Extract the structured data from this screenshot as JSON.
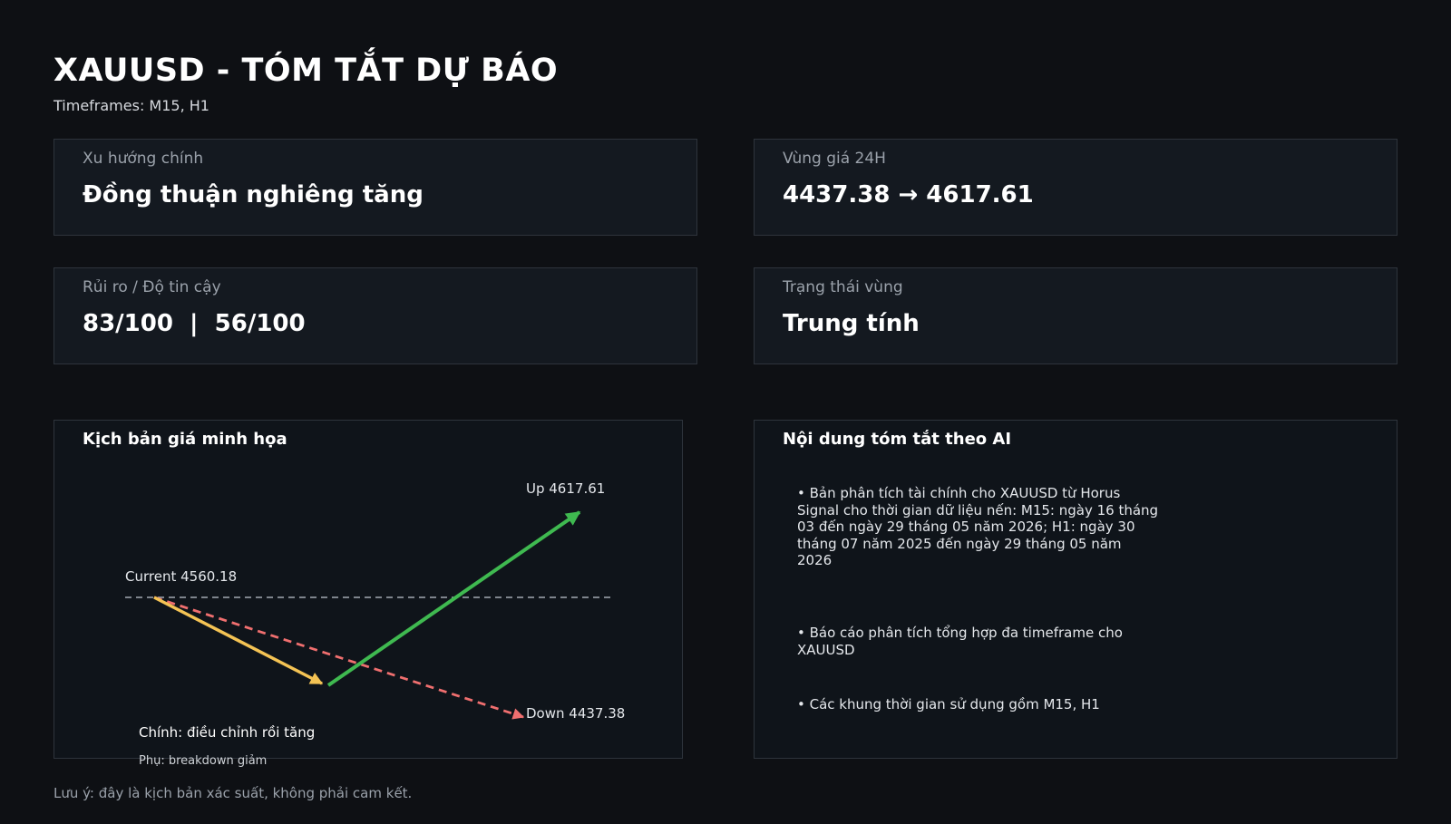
{
  "header": {
    "title": "XAUUSD - TÓM TẮT DỰ BÁO",
    "subtitle": "Timeframes: M15, H1"
  },
  "cards": [
    {
      "label": "Xu hướng chính",
      "value": "Đồng thuận nghiêng tăng"
    },
    {
      "label": "Vùng giá 24H",
      "value": "4437.38 → 4617.61"
    },
    {
      "label": "Rủi ro / Độ tin cậy",
      "value": "83/100  |  56/100"
    },
    {
      "label": "Trạng thái vùng",
      "value": "Trung tính"
    }
  ],
  "scenario": {
    "title": "Kịch bản giá minh họa",
    "current_label": "Current 4560.18",
    "up_label": "Up 4617.61",
    "down_label": "Down 4437.38",
    "legend_main": "Chính: điều chỉnh rồi tăng",
    "legend_sub": "Phụ: breakdown giảm",
    "colors": {
      "main_correction": "#f4c354",
      "main_rally": "#3fb950",
      "breakdown": "#f06f6f",
      "current_line": "#a4aab2"
    }
  },
  "chart_data": {
    "type": "line",
    "current": 4560.18,
    "up_target": 4617.61,
    "down_target": 4437.38,
    "series": [
      {
        "name": "Chính: điều chỉnh rồi tăng",
        "style": "solid"
      },
      {
        "name": "Phụ: breakdown giảm",
        "style": "dashed"
      }
    ]
  },
  "summary": {
    "title": "Nội dung tóm tắt theo AI",
    "bullets": [
      "• Bản phân tích tài chính cho XAUUSD từ Horus Signal cho thời gian dữ liệu nến: M15: ngày 16 tháng 03 đến ngày 29 tháng 05 năm 2026; H1: ngày 30 tháng 07 năm 2025 đến ngày 29 tháng 05 năm 2026",
      "• Báo cáo phân tích tổng hợp đa timeframe cho XAUUSD",
      "• Các khung thời gian sử dụng gồm M15, H1"
    ]
  },
  "footer": {
    "note": "Lưu ý: đây là kịch bản xác suất, không phải cam kết."
  }
}
